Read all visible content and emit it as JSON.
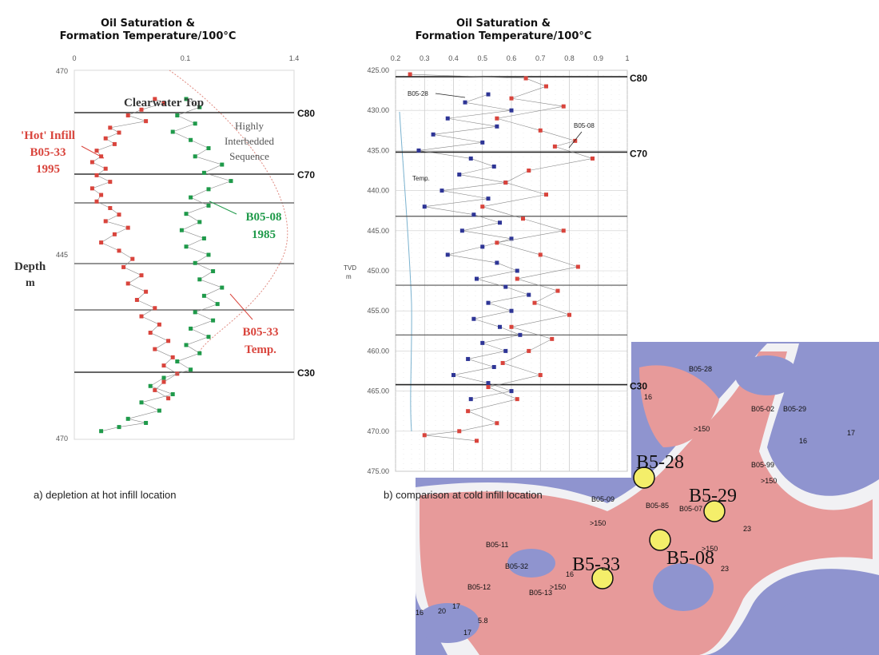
{
  "chart_data": [
    {
      "type": "scatter",
      "title_line1": "Oil Saturation &",
      "title_line2": "Formation Temperature/100°C",
      "x_ticks": [
        "0",
        "0.1",
        "1.4"
      ],
      "y_ticks": [
        "470",
        "445",
        "470"
      ],
      "ylabel_line1": "Depth",
      "ylabel_line2": "m",
      "ylim": [
        425,
        470
      ],
      "markers": [
        {
          "label": "C80",
          "depth": 428
        },
        {
          "label": "C70",
          "depth": 435
        },
        {
          "label": "C30",
          "depth": 462
        }
      ],
      "extra_lines": [
        438.5,
        450,
        456
      ],
      "annotations": {
        "clearwater_top": "Clearwater Top",
        "seq_line1": "Highly",
        "seq_line2": "Interbedded",
        "seq_line3": "Sequence",
        "hot_line1": "'Hot' Infill",
        "hot_line2": "B05-33",
        "hot_line3": "1995",
        "b0508_line1": "B05-08",
        "b0508_line2": "1985",
        "temp_line1": "B05-33",
        "temp_line2": "Temp."
      },
      "series": [
        {
          "name": "B05-33 1995",
          "color": "#d9443c",
          "points": [
            [
              0.18,
              428.5
            ],
            [
              0.2,
              429
            ],
            [
              0.15,
              429.8
            ],
            [
              0.12,
              430.5
            ],
            [
              0.16,
              431.2
            ],
            [
              0.08,
              432
            ],
            [
              0.1,
              432.6
            ],
            [
              0.07,
              433.3
            ],
            [
              0.09,
              434
            ],
            [
              0.05,
              434.8
            ],
            [
              0.06,
              435.5
            ],
            [
              0.04,
              436.2
            ],
            [
              0.07,
              437
            ],
            [
              0.05,
              437.8
            ],
            [
              0.08,
              438.6
            ],
            [
              0.04,
              439.4
            ],
            [
              0.06,
              440.2
            ],
            [
              0.05,
              441
            ],
            [
              0.08,
              441.8
            ],
            [
              0.1,
              442.6
            ],
            [
              0.07,
              443.4
            ],
            [
              0.12,
              444.2
            ],
            [
              0.09,
              445
            ],
            [
              0.06,
              446
            ],
            [
              0.1,
              447
            ],
            [
              0.13,
              448
            ],
            [
              0.11,
              449
            ],
            [
              0.15,
              450
            ],
            [
              0.12,
              451
            ],
            [
              0.16,
              452
            ],
            [
              0.14,
              453
            ],
            [
              0.18,
              454
            ],
            [
              0.15,
              455
            ],
            [
              0.19,
              456
            ],
            [
              0.17,
              457
            ],
            [
              0.21,
              458
            ],
            [
              0.18,
              459
            ],
            [
              0.22,
              460
            ],
            [
              0.2,
              461
            ],
            [
              0.23,
              462
            ],
            [
              0.2,
              463
            ],
            [
              0.18,
              464
            ],
            [
              0.21,
              465
            ]
          ]
        },
        {
          "name": "B05-08 1985",
          "color": "#1f9a4a",
          "points": [
            [
              0.25,
              428.5
            ],
            [
              0.28,
              429.5
            ],
            [
              0.23,
              430.5
            ],
            [
              0.27,
              431.5
            ],
            [
              0.22,
              432.5
            ],
            [
              0.26,
              433.5
            ],
            [
              0.3,
              434.5
            ],
            [
              0.27,
              435.5
            ],
            [
              0.33,
              436.5
            ],
            [
              0.29,
              437.5
            ],
            [
              0.35,
              438.5
            ],
            [
              0.3,
              439.5
            ],
            [
              0.26,
              440.5
            ],
            [
              0.3,
              441.5
            ],
            [
              0.25,
              442.5
            ],
            [
              0.28,
              443.5
            ],
            [
              0.24,
              444.5
            ],
            [
              0.29,
              445.5
            ],
            [
              0.25,
              446.5
            ],
            [
              0.3,
              447.5
            ],
            [
              0.27,
              448.5
            ],
            [
              0.31,
              449.5
            ],
            [
              0.28,
              450.5
            ],
            [
              0.33,
              451.5
            ],
            [
              0.29,
              452.5
            ],
            [
              0.32,
              453.5
            ],
            [
              0.27,
              454.5
            ],
            [
              0.31,
              455.5
            ],
            [
              0.26,
              456.5
            ],
            [
              0.3,
              457.5
            ],
            [
              0.25,
              458.5
            ],
            [
              0.28,
              459.5
            ],
            [
              0.23,
              460.5
            ],
            [
              0.26,
              461.5
            ],
            [
              0.2,
              462.5
            ],
            [
              0.17,
              463.5
            ],
            [
              0.22,
              464.5
            ],
            [
              0.15,
              465.5
            ],
            [
              0.19,
              466.5
            ],
            [
              0.12,
              467.5
            ],
            [
              0.16,
              468
            ],
            [
              0.1,
              468.5
            ],
            [
              0.06,
              469
            ]
          ]
        }
      ]
    },
    {
      "type": "scatter",
      "title_line1": "Oil Saturation &",
      "title_line2": "Formation Temperature/100°C",
      "x_ticks": [
        "0.2",
        "0.3",
        "0.4",
        "0.5",
        "0.6",
        "0.7",
        "0.8",
        "0.9",
        "1"
      ],
      "y_ticks": [
        "425.00",
        "430.00",
        "435.00",
        "440.00",
        "445.00",
        "450.00",
        "455.00",
        "460.00",
        "465.00",
        "470.00",
        "475.00"
      ],
      "xlim": [
        0.2,
        1.0
      ],
      "ylim": [
        425,
        475
      ],
      "ylabel_line1": "TVD",
      "ylabel_line2": "m",
      "markers": [
        {
          "label": "C80",
          "depth": 425.8
        },
        {
          "label": "C70",
          "depth": 435.2
        },
        {
          "label": "C30",
          "depth": 464.2
        }
      ],
      "extra_lines": [
        443.2,
        451.8,
        458
      ],
      "annotations": {
        "b0528": "B05-28",
        "b0508": "B05-08",
        "temp": "Temp."
      },
      "series": [
        {
          "name": "B05-28",
          "color": "#2e3596",
          "points": [
            [
              0.52,
              428
            ],
            [
              0.44,
              429
            ],
            [
              0.6,
              430
            ],
            [
              0.38,
              431
            ],
            [
              0.55,
              432
            ],
            [
              0.33,
              433
            ],
            [
              0.5,
              434
            ],
            [
              0.28,
              435
            ],
            [
              0.46,
              436
            ],
            [
              0.54,
              437
            ],
            [
              0.42,
              438
            ],
            [
              0.58,
              439
            ],
            [
              0.36,
              440
            ],
            [
              0.52,
              441
            ],
            [
              0.3,
              442
            ],
            [
              0.47,
              443
            ],
            [
              0.56,
              444
            ],
            [
              0.43,
              445
            ],
            [
              0.6,
              446
            ],
            [
              0.5,
              447
            ],
            [
              0.38,
              448
            ],
            [
              0.55,
              449
            ],
            [
              0.62,
              450
            ],
            [
              0.48,
              451
            ],
            [
              0.58,
              452
            ],
            [
              0.66,
              453
            ],
            [
              0.52,
              454
            ],
            [
              0.6,
              455
            ],
            [
              0.47,
              456
            ],
            [
              0.56,
              457
            ],
            [
              0.63,
              458
            ],
            [
              0.5,
              459
            ],
            [
              0.58,
              460
            ],
            [
              0.45,
              461
            ],
            [
              0.54,
              462
            ],
            [
              0.4,
              463
            ],
            [
              0.52,
              464
            ],
            [
              0.6,
              465
            ],
            [
              0.46,
              466
            ]
          ]
        },
        {
          "name": "B05-08",
          "color": "#d9443c",
          "points": [
            [
              0.25,
              425.5
            ],
            [
              0.65,
              426
            ],
            [
              0.72,
              427
            ],
            [
              0.6,
              428.5
            ],
            [
              0.78,
              429.5
            ],
            [
              0.55,
              431
            ],
            [
              0.7,
              432.5
            ],
            [
              0.82,
              433.8
            ],
            [
              0.75,
              434.5
            ],
            [
              0.88,
              436
            ],
            [
              0.66,
              437.5
            ],
            [
              0.58,
              439
            ],
            [
              0.72,
              440.5
            ],
            [
              0.5,
              442
            ],
            [
              0.64,
              443.5
            ],
            [
              0.78,
              445
            ],
            [
              0.55,
              446.5
            ],
            [
              0.7,
              448
            ],
            [
              0.83,
              449.5
            ],
            [
              0.62,
              451
            ],
            [
              0.76,
              452.5
            ],
            [
              0.68,
              454
            ],
            [
              0.8,
              455.5
            ],
            [
              0.6,
              457
            ],
            [
              0.74,
              458.5
            ],
            [
              0.66,
              460
            ],
            [
              0.57,
              461.5
            ],
            [
              0.7,
              463
            ],
            [
              0.52,
              464.5
            ],
            [
              0.62,
              466
            ],
            [
              0.45,
              467.5
            ],
            [
              0.55,
              469
            ],
            [
              0.42,
              470
            ],
            [
              0.3,
              470.5
            ],
            [
              0.48,
              471.2
            ]
          ]
        }
      ]
    }
  ],
  "captions": {
    "a": "a) depletion at hot infill location",
    "b": "b) comparison at cold infill location"
  },
  "map": {
    "wells": [
      {
        "name": "B5-28"
      },
      {
        "name": "B5-29"
      },
      {
        "name": "B5-08"
      },
      {
        "name": "B5-33"
      }
    ],
    "labels": [
      "B05-28",
      "16",
      "B05-02",
      ">150",
      "B05-29",
      "16",
      "B05-99",
      ">150",
      "17",
      "B05-09",
      ">150",
      "B05-85",
      "B05-07",
      ">150",
      "23",
      "B05-11",
      "B05-32",
      "B05-12",
      ">150",
      "B05-13",
      "16",
      "5.8",
      "17",
      "16",
      "17",
      "20",
      "23"
    ]
  }
}
